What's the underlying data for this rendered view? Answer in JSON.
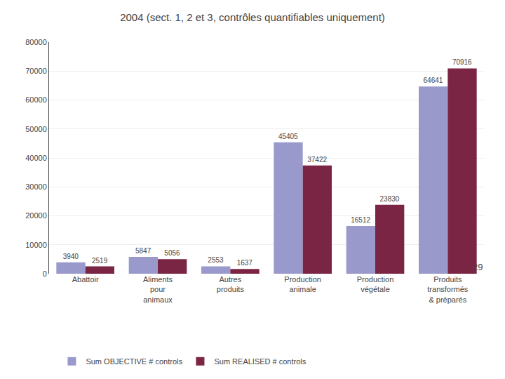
{
  "chart_data": {
    "type": "bar",
    "title": "2004 (sect. 1, 2 et 3, contrôles quantifiables uniquement)",
    "categories": [
      "Abattoir",
      "Aliments\npour\nanimaux",
      "Autres\nproduits",
      "Production\nanimale",
      "Production\nvégétale",
      "Produits\ntransformés\n& préparés"
    ],
    "series": [
      {
        "name": "Sum OBJECTIVE # controls",
        "color": "#9999cc",
        "values": [
          3940,
          5847,
          2553,
          45405,
          16512,
          64641
        ]
      },
      {
        "name": "Sum REALISED # controls",
        "color": "#7b2545",
        "values": [
          2519,
          5056,
          1637,
          37422,
          23830,
          70916
        ]
      }
    ],
    "ylim": [
      0,
      80000
    ],
    "yticks": [
      0,
      10000,
      20000,
      30000,
      40000,
      50000,
      60000,
      70000,
      80000
    ],
    "grid": true,
    "legend": "bottom",
    "data_labels": true,
    "annotations": [
      "29"
    ]
  }
}
